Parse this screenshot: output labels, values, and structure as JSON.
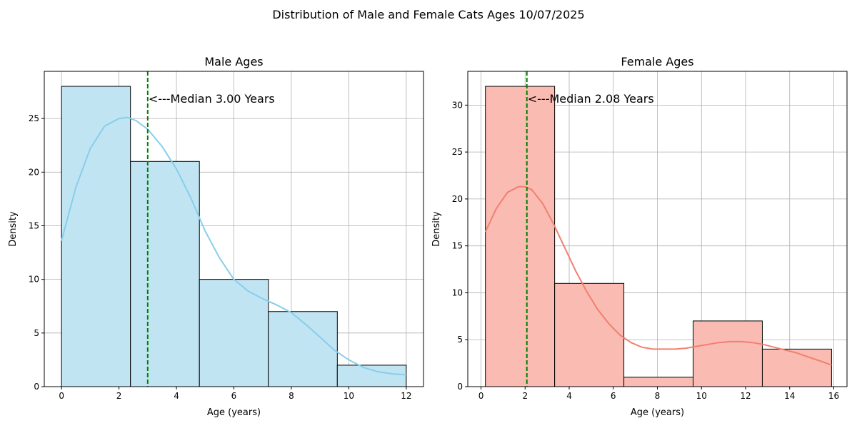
{
  "figure": {
    "suptitle": "Distribution of Male and Female Cats Ages 10/07/2025"
  },
  "chart_data": [
    {
      "type": "bar",
      "subtype": "histogram",
      "title": "Male Ages",
      "xlabel": "Age (years)",
      "ylabel": "Density",
      "xlim": [
        -0.6,
        12.6
      ],
      "ylim": [
        0,
        29.4
      ],
      "xticks": [
        0,
        2,
        4,
        6,
        8,
        10,
        12
      ],
      "yticks": [
        0,
        5,
        10,
        15,
        20,
        25
      ],
      "bin_edges": [
        0,
        2.4,
        4.8,
        7.2,
        9.6,
        12
      ],
      "values": [
        28,
        21,
        10,
        7,
        2
      ],
      "bar_color": "#c1e4f3",
      "line_color": "#87ceeb",
      "median": 3.0,
      "median_label": "<---Median 3.00 Years",
      "kde": {
        "x": [
          0,
          0.5,
          1,
          1.5,
          2,
          2.3,
          2.6,
          3,
          3.5,
          4,
          4.5,
          5,
          5.5,
          6,
          6.5,
          7,
          7.5,
          8,
          8.5,
          9,
          9.5,
          10,
          10.5,
          11,
          11.5,
          12
        ],
        "y": [
          13.6,
          18.6,
          22.2,
          24.3,
          25.0,
          25.1,
          24.8,
          24.0,
          22.4,
          20.3,
          17.6,
          14.5,
          12.0,
          10.0,
          8.9,
          8.2,
          7.6,
          6.9,
          5.8,
          4.6,
          3.4,
          2.5,
          1.8,
          1.4,
          1.2,
          1.1
        ]
      }
    },
    {
      "type": "bar",
      "subtype": "histogram",
      "title": "Female Ages",
      "xlabel": "Age (years)",
      "ylabel": "Density",
      "xlim": [
        -0.6,
        16.6
      ],
      "ylim": [
        0,
        33.6
      ],
      "xticks": [
        0,
        2,
        4,
        6,
        8,
        10,
        12,
        14,
        16
      ],
      "yticks": [
        0,
        5,
        10,
        15,
        20,
        25,
        30
      ],
      "bin_edges": [
        0.2,
        3.34,
        6.48,
        9.62,
        12.76,
        15.9
      ],
      "values": [
        32,
        11,
        1,
        7,
        4
      ],
      "bar_color": "#fabbb2",
      "line_color": "#f08070",
      "median": 2.08,
      "median_label": "<---Median 2.08 Years",
      "kde": {
        "x": [
          0.2,
          0.7,
          1.2,
          1.7,
          2.0,
          2.3,
          2.8,
          3.3,
          3.8,
          4.3,
          4.8,
          5.3,
          5.8,
          6.3,
          6.8,
          7.3,
          7.8,
          8.3,
          8.8,
          9.3,
          9.8,
          10.3,
          10.8,
          11.3,
          11.8,
          12.3,
          12.8,
          13.3,
          13.8,
          14.3,
          14.8,
          15.3,
          15.9
        ],
        "y": [
          16.5,
          19.0,
          20.7,
          21.3,
          21.3,
          21.0,
          19.5,
          17.3,
          14.8,
          12.3,
          10.1,
          8.2,
          6.7,
          5.5,
          4.7,
          4.2,
          4.0,
          4.0,
          4.0,
          4.1,
          4.3,
          4.5,
          4.7,
          4.8,
          4.8,
          4.7,
          4.5,
          4.2,
          3.9,
          3.6,
          3.2,
          2.8,
          2.3
        ]
      }
    }
  ]
}
